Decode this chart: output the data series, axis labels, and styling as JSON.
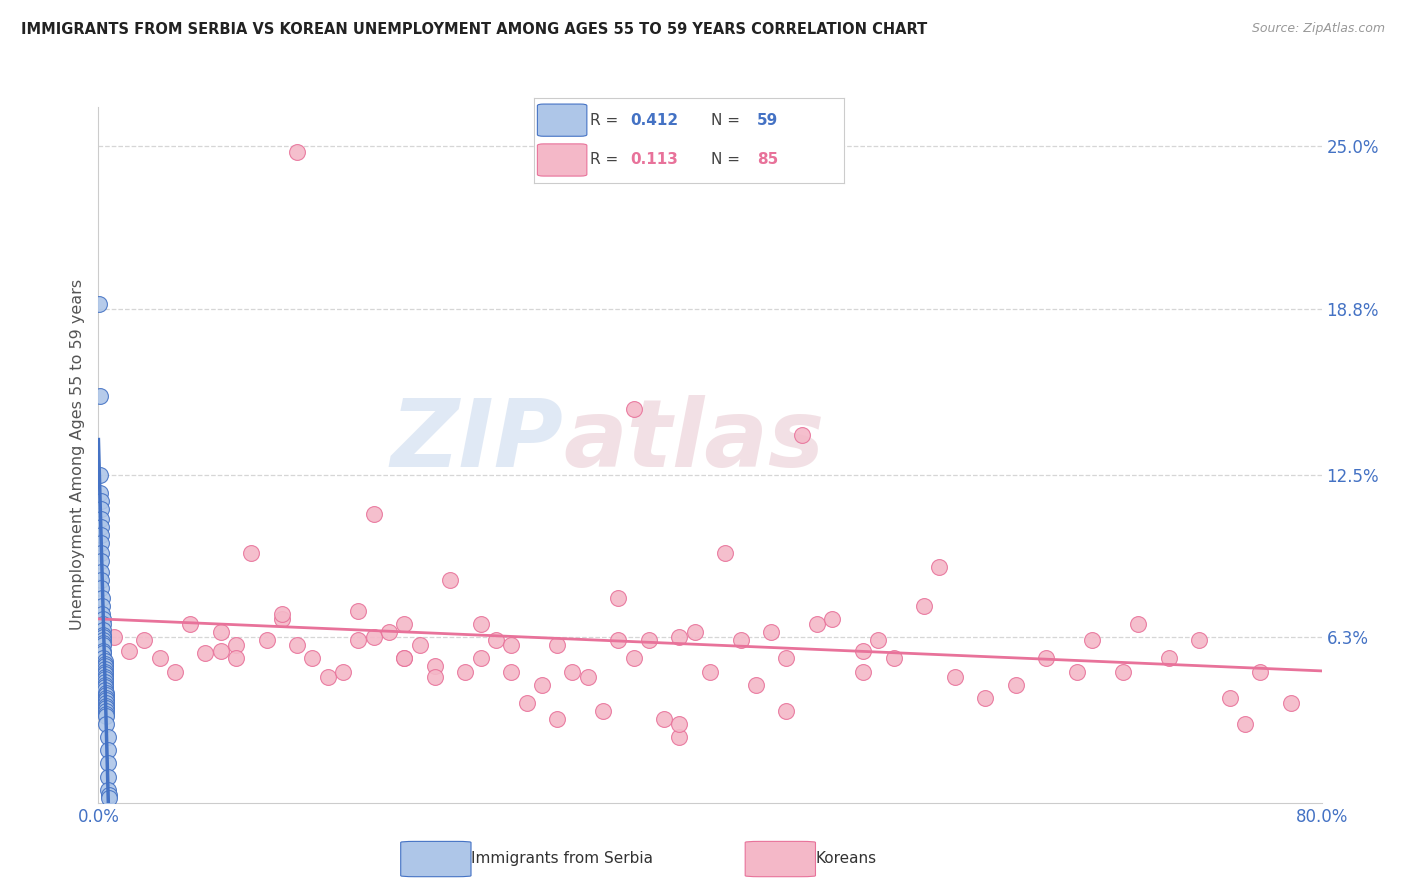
{
  "title": "IMMIGRANTS FROM SERBIA VS KOREAN UNEMPLOYMENT AMONG AGES 55 TO 59 YEARS CORRELATION CHART",
  "source": "Source: ZipAtlas.com",
  "ylabel_label": "Unemployment Among Ages 55 to 59 years",
  "serbia_R": "0.412",
  "serbia_N": "59",
  "korean_R": "0.113",
  "korean_N": "85",
  "serbia_color": "#aec6e8",
  "korean_color": "#f4b8c8",
  "serbia_line_color": "#4472C4",
  "korean_line_color": "#e8729a",
  "serbia_scatter_x": [
    0.0005,
    0.001,
    0.001,
    0.001,
    0.0015,
    0.0015,
    0.0015,
    0.002,
    0.002,
    0.002,
    0.002,
    0.002,
    0.002,
    0.002,
    0.002,
    0.0025,
    0.0025,
    0.0025,
    0.003,
    0.003,
    0.003,
    0.003,
    0.003,
    0.003,
    0.003,
    0.003,
    0.003,
    0.003,
    0.003,
    0.004,
    0.004,
    0.004,
    0.004,
    0.004,
    0.004,
    0.004,
    0.004,
    0.004,
    0.004,
    0.004,
    0.004,
    0.005,
    0.005,
    0.005,
    0.005,
    0.005,
    0.005,
    0.005,
    0.005,
    0.005,
    0.005,
    0.005,
    0.006,
    0.006,
    0.006,
    0.006,
    0.006,
    0.007,
    0.007
  ],
  "serbia_scatter_y": [
    0.19,
    0.155,
    0.125,
    0.118,
    0.115,
    0.112,
    0.108,
    0.105,
    0.102,
    0.099,
    0.095,
    0.092,
    0.088,
    0.085,
    0.082,
    0.078,
    0.075,
    0.072,
    0.07,
    0.068,
    0.066,
    0.064,
    0.063,
    0.062,
    0.061,
    0.06,
    0.058,
    0.057,
    0.055,
    0.054,
    0.053,
    0.052,
    0.051,
    0.05,
    0.049,
    0.048,
    0.047,
    0.046,
    0.045,
    0.044,
    0.043,
    0.042,
    0.041,
    0.04,
    0.039,
    0.038,
    0.037,
    0.036,
    0.035,
    0.034,
    0.033,
    0.03,
    0.025,
    0.02,
    0.015,
    0.01,
    0.005,
    0.003,
    0.002
  ],
  "korean_scatter_x": [
    0.01,
    0.02,
    0.03,
    0.04,
    0.05,
    0.06,
    0.07,
    0.08,
    0.08,
    0.09,
    0.09,
    0.1,
    0.11,
    0.12,
    0.12,
    0.13,
    0.14,
    0.15,
    0.16,
    0.17,
    0.17,
    0.18,
    0.18,
    0.19,
    0.2,
    0.2,
    0.21,
    0.22,
    0.22,
    0.23,
    0.24,
    0.25,
    0.25,
    0.26,
    0.27,
    0.28,
    0.29,
    0.3,
    0.3,
    0.31,
    0.32,
    0.33,
    0.34,
    0.35,
    0.35,
    0.36,
    0.37,
    0.38,
    0.38,
    0.39,
    0.4,
    0.41,
    0.42,
    0.43,
    0.44,
    0.45,
    0.46,
    0.47,
    0.48,
    0.5,
    0.51,
    0.52,
    0.54,
    0.55,
    0.56,
    0.58,
    0.6,
    0.62,
    0.64,
    0.65,
    0.67,
    0.68,
    0.7,
    0.72,
    0.74,
    0.75,
    0.76,
    0.78,
    0.34,
    0.45,
    0.5,
    0.38,
    0.27,
    0.2,
    0.13
  ],
  "korean_scatter_y": [
    0.063,
    0.058,
    0.062,
    0.055,
    0.05,
    0.068,
    0.057,
    0.065,
    0.058,
    0.06,
    0.055,
    0.095,
    0.062,
    0.07,
    0.072,
    0.06,
    0.055,
    0.048,
    0.05,
    0.062,
    0.073,
    0.11,
    0.063,
    0.065,
    0.068,
    0.055,
    0.06,
    0.052,
    0.048,
    0.085,
    0.05,
    0.068,
    0.055,
    0.062,
    0.06,
    0.038,
    0.045,
    0.032,
    0.06,
    0.05,
    0.048,
    0.035,
    0.078,
    0.055,
    0.15,
    0.062,
    0.032,
    0.025,
    0.03,
    0.065,
    0.05,
    0.095,
    0.062,
    0.045,
    0.065,
    0.035,
    0.14,
    0.068,
    0.07,
    0.058,
    0.062,
    0.055,
    0.075,
    0.09,
    0.048,
    0.04,
    0.045,
    0.055,
    0.05,
    0.062,
    0.05,
    0.068,
    0.055,
    0.062,
    0.04,
    0.03,
    0.05,
    0.038,
    0.062,
    0.055,
    0.05,
    0.063,
    0.05,
    0.055,
    0.248
  ],
  "xlim": [
    0,
    0.8
  ],
  "ylim": [
    0,
    0.265
  ],
  "ytick_vals": [
    0.063,
    0.125,
    0.188,
    0.25
  ],
  "ytick_labels": [
    "6.3%",
    "12.5%",
    "18.8%",
    "25.0%"
  ],
  "xtick_vals": [
    0.0,
    0.8
  ],
  "xtick_labels": [
    "0.0%",
    "80.0%"
  ],
  "watermark_zip": "ZIP",
  "watermark_atlas": "atlas",
  "background_color": "#ffffff"
}
